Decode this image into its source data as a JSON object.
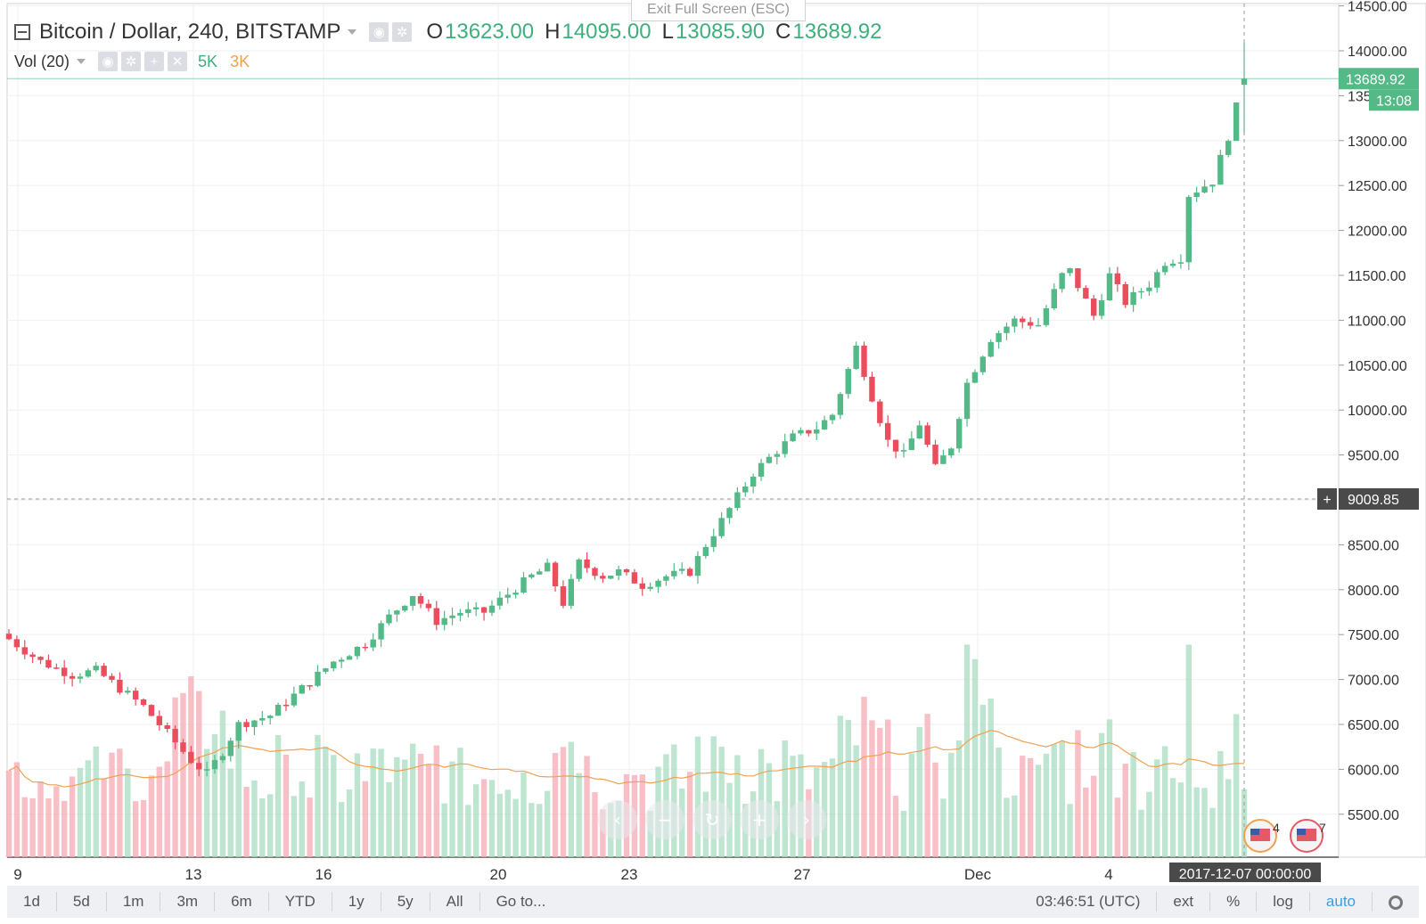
{
  "header": {
    "symbol": "Bitcoin / Dollar, 240, BITSTAMP",
    "o_label": "O",
    "o_value": "13623.00",
    "h_label": "H",
    "h_value": "14095.00",
    "l_label": "L",
    "l_value": "13085.90",
    "c_label": "C",
    "c_value": "13689.92"
  },
  "volume_legend": {
    "label": "Vol (20)",
    "value_a": "5K",
    "value_b": "3K"
  },
  "exit_fullscreen": "Exit Full Screen (ESC)",
  "price_badges": {
    "last_price": "13689.92",
    "countdown": "13:08",
    "crosshair_price": "9009.85",
    "crosshair_time": "2017-12-07 00:00:00"
  },
  "event_markers": [
    "4",
    "7"
  ],
  "bottom_bar": {
    "ranges": [
      "1d",
      "5d",
      "1m",
      "3m",
      "6m",
      "YTD",
      "1y",
      "5y",
      "All"
    ],
    "goto": "Go to...",
    "clock": "03:46:51 (UTC)",
    "toggles": [
      "ext",
      "%",
      "log"
    ],
    "auto": "auto"
  },
  "colors": {
    "up": "#53b987",
    "down": "#eb4d5c",
    "vol_up": "#a8dcc0",
    "vol_down": "#f7a9b4",
    "ma": "#f0a150",
    "accent": "#3b9dde"
  },
  "chart_data": {
    "type": "candlestick",
    "symbol": "Bitcoin / Dollar",
    "interval": "240",
    "exchange": "BITSTAMP",
    "y_axis": {
      "ticks": [
        5500,
        6000,
        6500,
        7000,
        7500,
        8000,
        8500,
        9000,
        9500,
        10000,
        10500,
        11000,
        11500,
        12000,
        12500,
        13000,
        13500,
        14000,
        14500
      ],
      "tick_labels": [
        "5500.00",
        "6000.00",
        "6500.00",
        "7000.00",
        "7500.00",
        "8000.00",
        "8500.00",
        "9000.00",
        "9500.00",
        "10000.00",
        "10500.00",
        "11000.00",
        "11500.00",
        "12000.00",
        "12500.00",
        "13000.00",
        "13500.00",
        "14000.00",
        "14500.00"
      ],
      "range": [
        5100,
        14550
      ]
    },
    "x_axis": {
      "labels": [
        "9",
        "13",
        "16",
        "20",
        "23",
        "27",
        "Dec",
        "4"
      ]
    },
    "close_path": [
      [
        0,
        7450
      ],
      [
        4,
        7200
      ],
      [
        8,
        7050
      ],
      [
        11,
        7100
      ],
      [
        14,
        6900
      ],
      [
        17,
        6700
      ],
      [
        20,
        6400
      ],
      [
        23,
        6100
      ],
      [
        25,
        5950
      ],
      [
        27,
        6200
      ],
      [
        29,
        6500
      ],
      [
        33,
        6600
      ],
      [
        37,
        6900
      ],
      [
        41,
        7200
      ],
      [
        45,
        7400
      ],
      [
        48,
        7700
      ],
      [
        51,
        7950
      ],
      [
        54,
        7650
      ],
      [
        57,
        7750
      ],
      [
        60,
        7750
      ],
      [
        63,
        7950
      ],
      [
        66,
        8150
      ],
      [
        68,
        8250
      ],
      [
        70,
        7850
      ],
      [
        72,
        8300
      ],
      [
        75,
        8150
      ],
      [
        77,
        8200
      ],
      [
        80,
        8050
      ],
      [
        83,
        8150
      ],
      [
        86,
        8200
      ],
      [
        88,
        8500
      ],
      [
        91,
        8900
      ],
      [
        94,
        9300
      ],
      [
        97,
        9550
      ],
      [
        99,
        9700
      ],
      [
        102,
        9800
      ],
      [
        104,
        9950
      ],
      [
        107,
        10700
      ],
      [
        109,
        10150
      ],
      [
        111,
        9650
      ],
      [
        113,
        9500
      ],
      [
        115,
        9850
      ],
      [
        117,
        9350
      ],
      [
        119,
        9600
      ],
      [
        121,
        10300
      ],
      [
        124,
        10800
      ],
      [
        127,
        11000
      ],
      [
        130,
        10950
      ],
      [
        133,
        11500
      ],
      [
        134,
        11550
      ],
      [
        137,
        11050
      ],
      [
        139,
        11500
      ],
      [
        141,
        11200
      ],
      [
        144,
        11400
      ],
      [
        146,
        11650
      ],
      [
        148,
        11700
      ],
      [
        149,
        12400
      ],
      [
        152,
        12550
      ],
      [
        154,
        13050
      ],
      [
        156,
        13690
      ]
    ],
    "candle_count": 157,
    "volume_ma_period": 20,
    "last": {
      "open": 13623.0,
      "high": 14095.0,
      "low": 13085.9,
      "close": 13689.92
    }
  }
}
